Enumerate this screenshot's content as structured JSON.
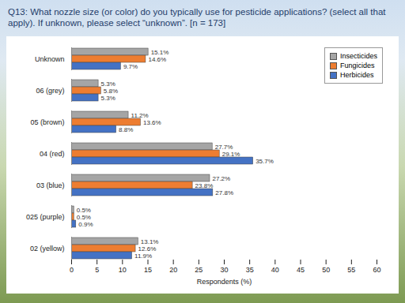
{
  "chart_data": {
    "type": "bar",
    "orientation": "horizontal",
    "title": "Q13: What nozzle size (or color) do you typically use for pesticide applications? (select all that apply). If unknown, please select “unknown”.  [n = 173]",
    "x_label": "Respondents (%)",
    "categories": [
      "Unknown",
      "06 (grey)",
      "05 (brown)",
      "04 (red)",
      "03 (blue)",
      "025 (purple)",
      "02 (yellow)"
    ],
    "series": [
      {
        "name": "Insecticides",
        "color": "#a5a5a5",
        "values": [
          15.1,
          5.3,
          11.2,
          27.7,
          27.2,
          0.5,
          13.1
        ],
        "value_labels": [
          "15.1%",
          "5.3%",
          "11.2%",
          "27.7%",
          "27.2%",
          "0.5%",
          "13.1%"
        ]
      },
      {
        "name": "Fungicides",
        "color": "#ed7d31",
        "values": [
          14.6,
          5.8,
          13.6,
          29.1,
          23.8,
          0.5,
          12.6
        ],
        "value_labels": [
          "14.6%",
          "5.8%",
          "13.6%",
          "29.1%",
          "23.8%",
          "0.5%",
          "12.6%"
        ]
      },
      {
        "name": "Herbicides",
        "color": "#4472c4",
        "values": [
          9.7,
          5.3,
          8.8,
          35.7,
          27.8,
          0.9,
          11.9
        ],
        "value_labels": [
          "9.7%",
          "5.3%",
          "8.8%",
          "35.7%",
          "27.8%",
          "0.9%",
          "11.9%"
        ]
      }
    ],
    "xlim": [
      0,
      60
    ],
    "xticks": [
      0,
      5,
      10,
      15,
      20,
      25,
      30,
      35,
      40,
      45,
      50,
      55,
      60
    ],
    "data_labels": true,
    "legend": "top-right",
    "grid": false
  }
}
